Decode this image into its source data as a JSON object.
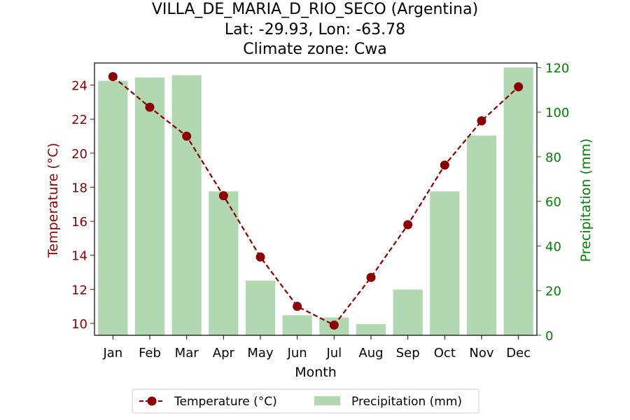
{
  "chart_data": {
    "type": "bar+line",
    "title_lines": [
      "VILLA_DE_MARIA_D_RIO_SECO (Argentina)",
      "Lat: -29.93, Lon: -63.78",
      "Climate zone: Cwa"
    ],
    "xlabel": "Month",
    "ylabel_left": "Temperature (°C)",
    "ylabel_right": "Precipitation (mm)",
    "categories": [
      "Jan",
      "Feb",
      "Mar",
      "Apr",
      "May",
      "Jun",
      "Jul",
      "Aug",
      "Sep",
      "Oct",
      "Nov",
      "Dec"
    ],
    "ylim_left": [
      9.3,
      25.3
    ],
    "yticks_left": [
      10,
      12,
      14,
      16,
      18,
      20,
      22,
      24
    ],
    "ylim_right": [
      0,
      122
    ],
    "yticks_right": [
      0,
      20,
      40,
      60,
      80,
      100,
      120
    ],
    "series": [
      {
        "name": "Temperature (°C)",
        "kind": "line",
        "axis": "left",
        "style": "dashed",
        "marker": "circle",
        "color": "#8b0000",
        "values": [
          24.5,
          22.7,
          21.0,
          17.5,
          13.9,
          11.0,
          9.9,
          12.7,
          15.8,
          19.3,
          21.9,
          23.9
        ]
      },
      {
        "name": "Precipitation (mm)",
        "kind": "bar",
        "axis": "right",
        "color": "#b2d8b2",
        "values": [
          114,
          115.5,
          116.5,
          64.5,
          24.5,
          9,
          8,
          5,
          20.5,
          64.5,
          89.5,
          120
        ]
      }
    ],
    "legend_position": "bottom-center",
    "colors": {
      "temperature_axis": "#8b0000",
      "precipitation_axis": "#008000",
      "text": "#000000"
    }
  }
}
